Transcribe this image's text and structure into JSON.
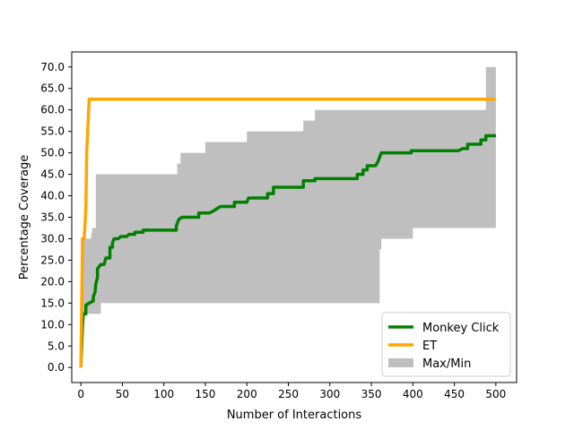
{
  "chart_data": {
    "type": "line",
    "xlabel": "Number of Interactions",
    "ylabel": "Percentage Coverage",
    "xlim": [
      -11,
      525
    ],
    "ylim": [
      -3.5,
      73.5
    ],
    "x_ticks": [
      0,
      50,
      100,
      150,
      200,
      250,
      300,
      350,
      400,
      450,
      500
    ],
    "y_ticks": [
      0,
      5,
      10,
      15,
      20,
      25,
      30,
      35,
      40,
      45,
      50,
      55,
      60,
      65,
      70
    ],
    "x_tick_labels": [
      "0",
      "50",
      "100",
      "150",
      "200",
      "250",
      "300",
      "350",
      "400",
      "450",
      "500"
    ],
    "y_tick_labels": [
      "0.0",
      "5.0",
      "10.0",
      "15.0",
      "20.0",
      "25.0",
      "30.0",
      "35.0",
      "40.0",
      "45.0",
      "50.0",
      "55.0",
      "60.0",
      "65.0",
      "70.0"
    ],
    "grid": false,
    "legend_position": "lower right",
    "series": [
      {
        "name": "Monkey Click",
        "color": "#008000",
        "points": [
          [
            0,
            0
          ],
          [
            1,
            5
          ],
          [
            2,
            10
          ],
          [
            3,
            12.5
          ],
          [
            6,
            12.5
          ],
          [
            6,
            14.5
          ],
          [
            10,
            15
          ],
          [
            15,
            15.5
          ],
          [
            15,
            16.5
          ],
          [
            17,
            17.5
          ],
          [
            18,
            19.5
          ],
          [
            20,
            21
          ],
          [
            20,
            23
          ],
          [
            24,
            24
          ],
          [
            28,
            24
          ],
          [
            30,
            25.5
          ],
          [
            35,
            25.5
          ],
          [
            35,
            28
          ],
          [
            38,
            28
          ],
          [
            38,
            29
          ],
          [
            40,
            30
          ],
          [
            45,
            30
          ],
          [
            48,
            30.5
          ],
          [
            55,
            30.5
          ],
          [
            58,
            31
          ],
          [
            65,
            31
          ],
          [
            65,
            31.5
          ],
          [
            75,
            31.5
          ],
          [
            75,
            32
          ],
          [
            88,
            32
          ],
          [
            93,
            32
          ],
          [
            100,
            32
          ],
          [
            115,
            32
          ],
          [
            115,
            33
          ],
          [
            118,
            34.5
          ],
          [
            122,
            35
          ],
          [
            142,
            35
          ],
          [
            142,
            36
          ],
          [
            155,
            36
          ],
          [
            160,
            36.5
          ],
          [
            168,
            37.5
          ],
          [
            185,
            37.5
          ],
          [
            185,
            38.5
          ],
          [
            200,
            38.5
          ],
          [
            202,
            39.5
          ],
          [
            225,
            39.5
          ],
          [
            225,
            40.5
          ],
          [
            232,
            40.5
          ],
          [
            232,
            42
          ],
          [
            268,
            42
          ],
          [
            268,
            43.5
          ],
          [
            282,
            43.5
          ],
          [
            282,
            44
          ],
          [
            333,
            44
          ],
          [
            333,
            45
          ],
          [
            340,
            45
          ],
          [
            340,
            46
          ],
          [
            345,
            46
          ],
          [
            345,
            47
          ],
          [
            355,
            47
          ],
          [
            358,
            48
          ],
          [
            362,
            50
          ],
          [
            370,
            50
          ],
          [
            398,
            50
          ],
          [
            398,
            50.5
          ],
          [
            455,
            50.5
          ],
          [
            460,
            51
          ],
          [
            466,
            51
          ],
          [
            466,
            52
          ],
          [
            482,
            52
          ],
          [
            482,
            53
          ],
          [
            488,
            53
          ],
          [
            488,
            54
          ],
          [
            500,
            54
          ]
        ]
      },
      {
        "name": "ET",
        "color": "#FFA500",
        "points": [
          [
            0,
            0
          ],
          [
            1,
            15
          ],
          [
            2,
            30
          ],
          [
            4,
            30
          ],
          [
            6,
            37
          ],
          [
            7,
            50
          ],
          [
            10,
            62.5
          ],
          [
            500,
            62.5
          ]
        ]
      },
      {
        "name": "Max/Min",
        "color": "#BFBFBF",
        "upper": [
          [
            0,
            0
          ],
          [
            2,
            30
          ],
          [
            12,
            30
          ],
          [
            14,
            32.5
          ],
          [
            18,
            32.5
          ],
          [
            18,
            45
          ],
          [
            116,
            45
          ],
          [
            116,
            47.5
          ],
          [
            120,
            47.5
          ],
          [
            120,
            50
          ],
          [
            150,
            50
          ],
          [
            150,
            52.5
          ],
          [
            200,
            52.5
          ],
          [
            200,
            55
          ],
          [
            268,
            55
          ],
          [
            268,
            57.5
          ],
          [
            282,
            57.5
          ],
          [
            282,
            60
          ],
          [
            488,
            60
          ],
          [
            488,
            70
          ],
          [
            500,
            70
          ]
        ],
        "lower": [
          [
            0,
            0
          ],
          [
            2,
            12.5
          ],
          [
            24,
            12.5
          ],
          [
            24,
            15
          ],
          [
            360,
            15
          ],
          [
            360,
            27.5
          ],
          [
            362,
            27.5
          ],
          [
            362,
            30
          ],
          [
            400,
            30
          ],
          [
            400,
            32.5
          ],
          [
            500,
            32.5
          ]
        ]
      }
    ]
  }
}
